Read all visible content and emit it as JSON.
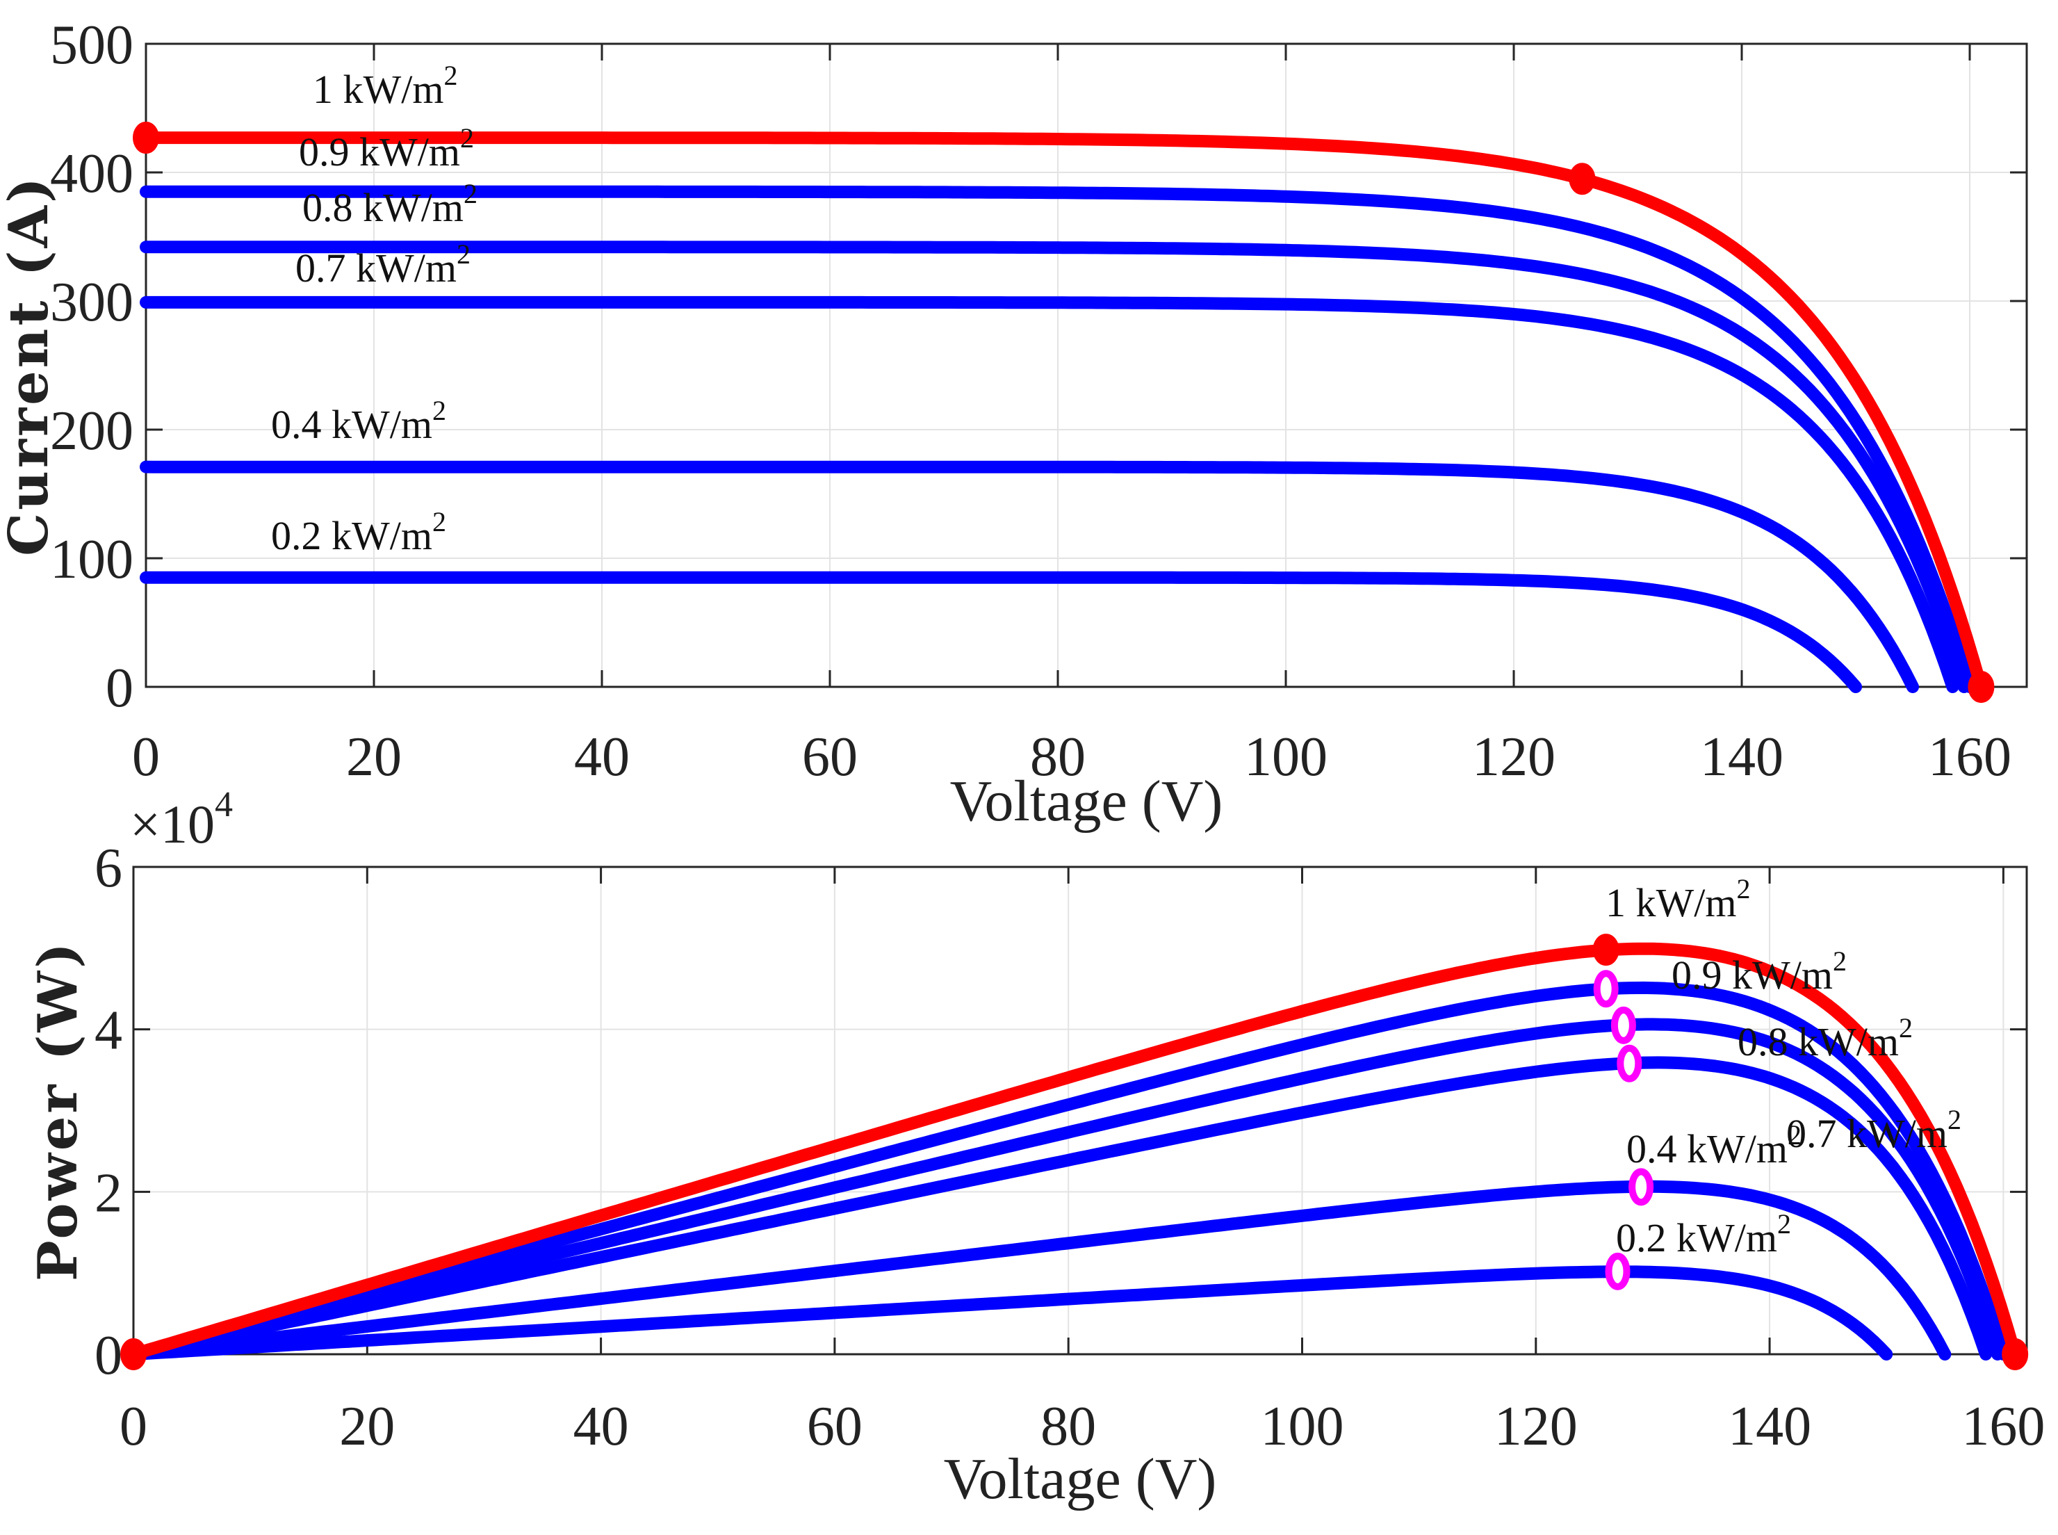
{
  "chart_data": [
    {
      "type": "line",
      "id": "iv",
      "xlabel": "Voltage (V)",
      "ylabel": "Current (A)",
      "xlim": [
        0,
        165
      ],
      "ylim": [
        0,
        500
      ],
      "xticks": [
        0,
        20,
        40,
        60,
        80,
        100,
        120,
        140,
        160
      ],
      "yticks": [
        0,
        100,
        200,
        300,
        400,
        500
      ],
      "grid": true,
      "series": [
        {
          "name": "1 kW/m2",
          "label_prefix": "1 kW/m",
          "label_sup": "2",
          "color": "#ff0000",
          "isc": 427,
          "voc": 161,
          "mpp_v": 126,
          "mpp": 395
        },
        {
          "name": "0.9 kW/m2",
          "label_prefix": "0.9 kW/m",
          "label_sup": "2",
          "color": "#0000ff",
          "isc": 385,
          "voc": 160,
          "mpp_v": 126,
          "mpp": 357
        },
        {
          "name": "0.8 kW/m2",
          "label_prefix": "0.8 kW/m",
          "label_sup": "2",
          "color": "#0000ff",
          "isc": 342,
          "voc": 159.5,
          "mpp_v": 127.5,
          "mpp": 318
        },
        {
          "name": "0.7 kW/m2",
          "label_prefix": "0.7 kW/m",
          "label_sup": "2",
          "color": "#0000ff",
          "isc": 299,
          "voc": 158.5,
          "mpp_v": 128,
          "mpp": 280
        },
        {
          "name": "0.4 kW/m2",
          "label_prefix": "0.4 kW/m",
          "label_sup": "2",
          "color": "#0000ff",
          "isc": 171,
          "voc": 155,
          "mpp_v": 129,
          "mpp": 160
        },
        {
          "name": "0.2 kW/m2",
          "label_prefix": "0.2 kW/m",
          "label_sup": "2",
          "color": "#0000ff",
          "isc": 85,
          "voc": 150,
          "mpp_v": 127,
          "mpp": 80
        }
      ],
      "markers": [
        {
          "x": 0,
          "y": 427,
          "color": "#ff0000"
        },
        {
          "x": 126,
          "y": 395,
          "color": "#ff0000"
        },
        {
          "x": 161,
          "y": 0,
          "color": "#ff0000"
        }
      ]
    },
    {
      "type": "line",
      "id": "pv",
      "xlabel": "Voltage (V)",
      "ylabel": "Power (W)",
      "y_exponent_base": "×10",
      "y_exponent": "4",
      "xlim": [
        0,
        162
      ],
      "ylim": [
        0,
        6
      ],
      "xticks": [
        0,
        20,
        40,
        60,
        80,
        100,
        120,
        140,
        160
      ],
      "yticks": [
        0,
        2,
        4,
        6
      ],
      "grid": true,
      "series": [
        {
          "name": "1 kW/m2",
          "label_prefix": "1 kW/m",
          "label_sup": "2",
          "color": "#ff0000",
          "mpp_v": 126,
          "pmax": 4.98
        },
        {
          "name": "0.9 kW/m2",
          "label_prefix": "0.9 kW/m",
          "label_sup": "2",
          "color": "#0000ff",
          "mpp_v": 126,
          "pmax": 4.5
        },
        {
          "name": "0.8 kW/m2",
          "label_prefix": "0.8 kW/m",
          "label_sup": "2",
          "color": "#0000ff",
          "mpp_v": 127.5,
          "pmax": 4.05
        },
        {
          "name": "0.7 kW/m2",
          "label_prefix": "0.7 kW/m",
          "label_sup": "2",
          "color": "#0000ff",
          "mpp_v": 128,
          "pmax": 3.58
        },
        {
          "name": "0.4 kW/m2",
          "label_prefix": "0.4 kW/m",
          "label_sup": "2",
          "color": "#0000ff",
          "mpp_v": 129,
          "pmax": 2.06
        },
        {
          "name": "0.2 kW/m2",
          "label_prefix": "0.2 kW/m",
          "label_sup": "2",
          "color": "#0000ff",
          "mpp_v": 127,
          "pmax": 1.02
        }
      ],
      "markers": [
        {
          "x": 0,
          "y": 0,
          "color": "#ff0000"
        },
        {
          "x": 126,
          "y": 4.98,
          "color": "#ff0000"
        },
        {
          "x": 126,
          "y": 4.5,
          "color": "#ff00ff"
        },
        {
          "x": 127.5,
          "y": 4.05,
          "color": "#ff00ff"
        },
        {
          "x": 128,
          "y": 3.58,
          "color": "#ff00ff"
        },
        {
          "x": 129,
          "y": 2.06,
          "color": "#ff00ff"
        },
        {
          "x": 127,
          "y": 1.02,
          "color": "#ff00ff"
        },
        {
          "x": 161,
          "y": 0,
          "color": "#ff0000"
        }
      ]
    }
  ]
}
